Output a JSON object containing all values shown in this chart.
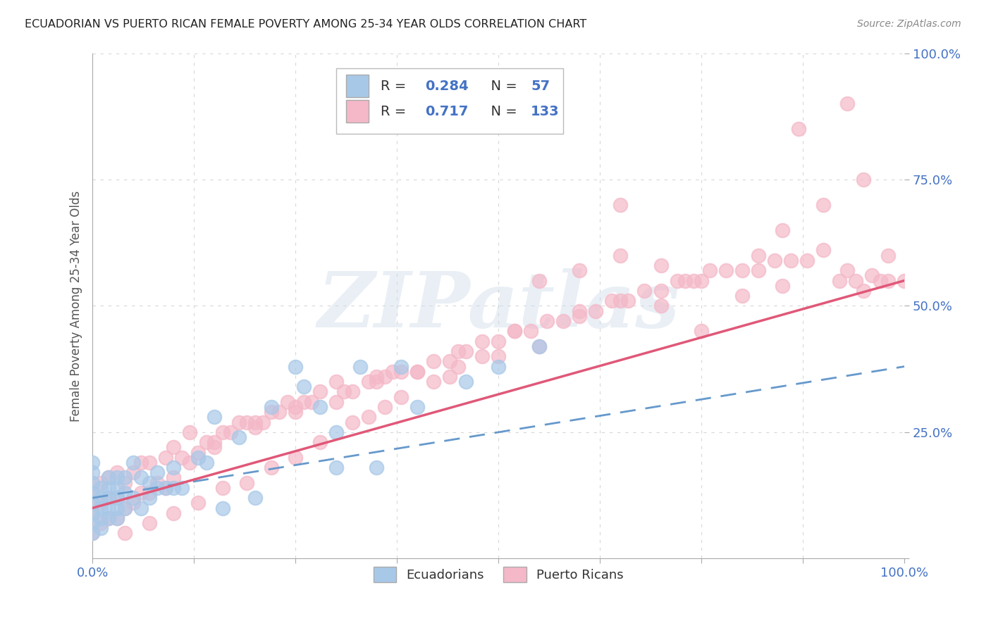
{
  "title": "ECUADORIAN VS PUERTO RICAN FEMALE POVERTY AMONG 25-34 YEAR OLDS CORRELATION CHART",
  "source": "Source: ZipAtlas.com",
  "ylabel": "Female Poverty Among 25-34 Year Olds",
  "xlim": [
    0,
    1.0
  ],
  "ylim": [
    0,
    1.0
  ],
  "ecuadorian_color": "#a8c8e8",
  "puerto_rican_color": "#f4b8c8",
  "ecuadorian_line_color": "#6699cc",
  "puerto_rican_line_color": "#e05878",
  "ecuadorian_R": 0.284,
  "ecuadorian_N": 57,
  "puerto_rican_R": 0.717,
  "puerto_rican_N": 133,
  "legend_label_1": "Ecuadorians",
  "legend_label_2": "Puerto Ricans",
  "watermark_text": "ZIPatlas",
  "watermark_color": "#c8d8e8",
  "background_color": "#ffffff",
  "tick_label_color": "#4472c4",
  "value_color": "#4472c4",
  "label_color": "#333333",
  "source_color": "#888888",
  "grid_color": "#d8d8d8",
  "ecu_x": [
    0.0,
    0.0,
    0.0,
    0.0,
    0.0,
    0.0,
    0.0,
    0.0,
    0.01,
    0.01,
    0.01,
    0.01,
    0.01,
    0.02,
    0.02,
    0.02,
    0.02,
    0.02,
    0.03,
    0.03,
    0.03,
    0.03,
    0.03,
    0.04,
    0.04,
    0.04,
    0.05,
    0.05,
    0.06,
    0.06,
    0.07,
    0.07,
    0.08,
    0.08,
    0.09,
    0.1,
    0.1,
    0.11,
    0.13,
    0.14,
    0.15,
    0.16,
    0.18,
    0.2,
    0.22,
    0.25,
    0.26,
    0.28,
    0.3,
    0.3,
    0.33,
    0.35,
    0.38,
    0.4,
    0.46,
    0.5,
    0.55
  ],
  "ecu_y": [
    0.05,
    0.07,
    0.09,
    0.11,
    0.13,
    0.15,
    0.17,
    0.19,
    0.06,
    0.08,
    0.1,
    0.12,
    0.14,
    0.08,
    0.1,
    0.12,
    0.14,
    0.16,
    0.08,
    0.1,
    0.12,
    0.14,
    0.16,
    0.1,
    0.13,
    0.16,
    0.12,
    0.19,
    0.1,
    0.16,
    0.12,
    0.15,
    0.14,
    0.17,
    0.14,
    0.14,
    0.18,
    0.14,
    0.2,
    0.19,
    0.28,
    0.1,
    0.24,
    0.12,
    0.3,
    0.38,
    0.34,
    0.3,
    0.25,
    0.18,
    0.38,
    0.18,
    0.38,
    0.3,
    0.35,
    0.38,
    0.42
  ],
  "pr_x": [
    0.0,
    0.0,
    0.0,
    0.01,
    0.01,
    0.01,
    0.02,
    0.02,
    0.02,
    0.03,
    0.03,
    0.03,
    0.04,
    0.04,
    0.05,
    0.05,
    0.06,
    0.06,
    0.07,
    0.07,
    0.08,
    0.09,
    0.09,
    0.1,
    0.1,
    0.11,
    0.12,
    0.12,
    0.13,
    0.14,
    0.15,
    0.16,
    0.17,
    0.18,
    0.19,
    0.2,
    0.21,
    0.22,
    0.23,
    0.24,
    0.25,
    0.26,
    0.27,
    0.28,
    0.3,
    0.31,
    0.32,
    0.34,
    0.35,
    0.36,
    0.37,
    0.38,
    0.4,
    0.42,
    0.44,
    0.45,
    0.46,
    0.48,
    0.5,
    0.52,
    0.54,
    0.56,
    0.58,
    0.6,
    0.62,
    0.64,
    0.65,
    0.66,
    0.68,
    0.7,
    0.72,
    0.73,
    0.74,
    0.76,
    0.78,
    0.8,
    0.82,
    0.84,
    0.86,
    0.88,
    0.9,
    0.92,
    0.93,
    0.94,
    0.95,
    0.96,
    0.97,
    0.98,
    1.0,
    0.98,
    0.95,
    0.93,
    0.9,
    0.87,
    0.85,
    0.82,
    0.75,
    0.7,
    0.65,
    0.6,
    0.55,
    0.5,
    0.45,
    0.4,
    0.35,
    0.3,
    0.25,
    0.2,
    0.15,
    0.52,
    0.48,
    0.44,
    0.42,
    0.38,
    0.36,
    0.34,
    0.32,
    0.28,
    0.25,
    0.22,
    0.19,
    0.16,
    0.13,
    0.1,
    0.07,
    0.04,
    0.55,
    0.6,
    0.65,
    0.7,
    0.75,
    0.8,
    0.85
  ],
  "pr_y": [
    0.05,
    0.09,
    0.13,
    0.07,
    0.11,
    0.15,
    0.08,
    0.12,
    0.16,
    0.08,
    0.12,
    0.17,
    0.1,
    0.15,
    0.11,
    0.17,
    0.13,
    0.19,
    0.13,
    0.19,
    0.15,
    0.14,
    0.2,
    0.16,
    0.22,
    0.2,
    0.19,
    0.25,
    0.21,
    0.23,
    0.23,
    0.25,
    0.25,
    0.27,
    0.27,
    0.27,
    0.27,
    0.29,
    0.29,
    0.31,
    0.29,
    0.31,
    0.31,
    0.33,
    0.31,
    0.33,
    0.33,
    0.35,
    0.35,
    0.36,
    0.37,
    0.37,
    0.37,
    0.39,
    0.39,
    0.41,
    0.41,
    0.43,
    0.43,
    0.45,
    0.45,
    0.47,
    0.47,
    0.49,
    0.49,
    0.51,
    0.51,
    0.51,
    0.53,
    0.53,
    0.55,
    0.55,
    0.55,
    0.57,
    0.57,
    0.57,
    0.57,
    0.59,
    0.59,
    0.59,
    0.61,
    0.55,
    0.57,
    0.55,
    0.53,
    0.56,
    0.55,
    0.55,
    0.55,
    0.6,
    0.75,
    0.9,
    0.7,
    0.85,
    0.65,
    0.6,
    0.45,
    0.5,
    0.7,
    0.48,
    0.42,
    0.4,
    0.38,
    0.37,
    0.36,
    0.35,
    0.3,
    0.26,
    0.22,
    0.45,
    0.4,
    0.36,
    0.35,
    0.32,
    0.3,
    0.28,
    0.27,
    0.23,
    0.2,
    0.18,
    0.15,
    0.14,
    0.11,
    0.09,
    0.07,
    0.05,
    0.55,
    0.57,
    0.6,
    0.58,
    0.55,
    0.52,
    0.54
  ]
}
